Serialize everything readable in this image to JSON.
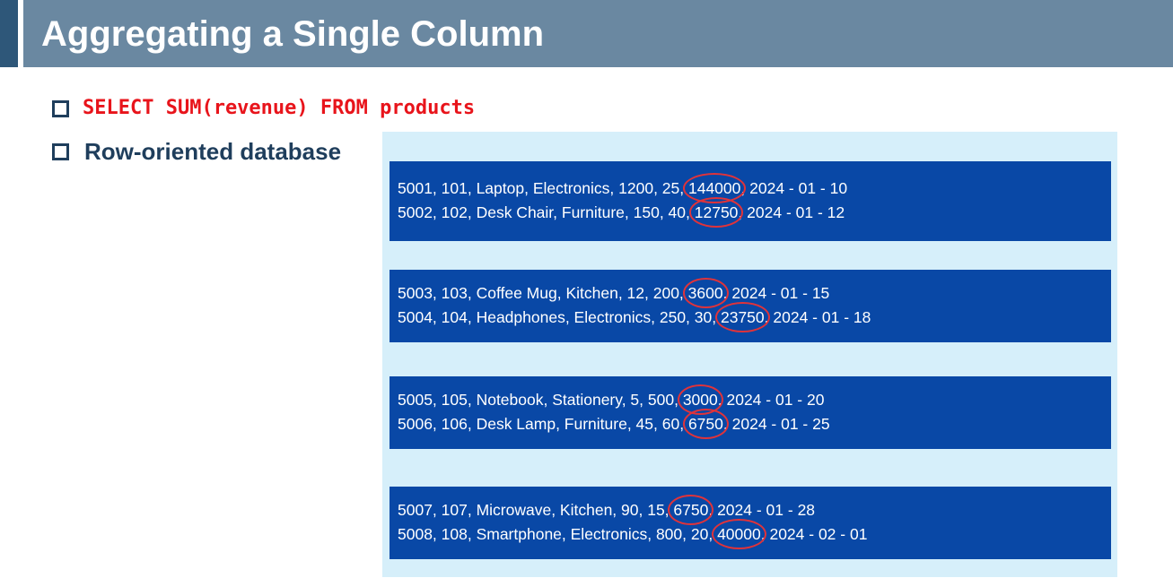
{
  "slide": {
    "title": "Aggregating a Single Column",
    "bullets": [
      {
        "text": "SELECT SUM(revenue) FROM products",
        "style": "code",
        "color": "#e8141b"
      },
      {
        "text": "Row-oriented database",
        "style": "heading",
        "color": "#1f3e5c"
      }
    ]
  },
  "colors": {
    "header_bg": "#6a88a1",
    "header_accent": "#2e5779",
    "panel_bg": "#d6effa",
    "block_bg": "#0948a6",
    "highlight_ring": "#e0333a"
  },
  "blocks": [
    {
      "rows": [
        {
          "before": "5001, 101, Laptop, Electronics, 1200, 25, ",
          "revenue": "144000",
          "after": ", 2024 - 01 - 10"
        },
        {
          "before": "5002, 102, Desk Chair, Furniture, 150, 40, ",
          "revenue": "12750",
          "after": ", 2024 - 01 - 12"
        }
      ]
    },
    {
      "rows": [
        {
          "before": "5003, 103, Coffee Mug, Kitchen, 12, 200, ",
          "revenue": "3600",
          "after": ", 2024 - 01 - 15"
        },
        {
          "before": "5004, 104, Headphones, Electronics, 250, 30, ",
          "revenue": "23750",
          "after": ", 2024 - 01 - 18"
        }
      ]
    },
    {
      "rows": [
        {
          "before": "5005, 105, Notebook, Stationery, 5, 500, ",
          "revenue": "3000",
          "after": ", 2024 - 01 - 20"
        },
        {
          "before": "5006, 106, Desk Lamp, Furniture, 45, 60, ",
          "revenue": "6750",
          "after": ", 2024 - 01 - 25"
        }
      ]
    },
    {
      "rows": [
        {
          "before": "5007, 107, Microwave, Kitchen, 90, 15, ",
          "revenue": "6750",
          "after": ", 2024 - 01 - 28"
        },
        {
          "before": "5008, 108, Smartphone, Electronics, 800, 20, ",
          "revenue": "40000",
          "after": ", 2024 - 02 - 01"
        }
      ]
    }
  ]
}
